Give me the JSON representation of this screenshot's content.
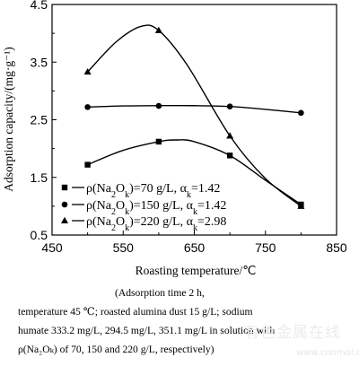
{
  "chart_data": {
    "type": "line",
    "xlabel": "Roasting temperature/℃",
    "ylabel": "Adsorption capacity/(mg·g⁻¹)",
    "xlim": [
      450,
      850
    ],
    "ylim": [
      0.5,
      4.5
    ],
    "xticks": [
      "450",
      "550",
      "650",
      "750",
      "850"
    ],
    "yticks": [
      "0.5",
      "1.5",
      "2.5",
      "3.5",
      "4.5"
    ],
    "grid": false,
    "legend_position": "bottom-left",
    "series": [
      {
        "name": "ρ(Na₂Oₖ)=70 g/L, αₖ=1.42",
        "marker": "square",
        "x": [
          500,
          600,
          700,
          800
        ],
        "y": [
          1.72,
          2.12,
          1.88,
          1.03
        ],
        "curve": [
          [
            500,
            1.72
          ],
          [
            550,
            1.97
          ],
          [
            600,
            2.12
          ],
          [
            625,
            2.15
          ],
          [
            650,
            2.12
          ],
          [
            700,
            1.88
          ],
          [
            750,
            1.45
          ],
          [
            800,
            1.03
          ]
        ]
      },
      {
        "name": "ρ(Na₂Oₖ)=150 g/L, αₖ=1.42",
        "marker": "circle",
        "x": [
          500,
          600,
          700,
          800
        ],
        "y": [
          2.72,
          2.74,
          2.73,
          2.62
        ],
        "curve": [
          [
            500,
            2.72
          ],
          [
            550,
            2.74
          ],
          [
            600,
            2.745
          ],
          [
            650,
            2.745
          ],
          [
            700,
            2.73
          ],
          [
            750,
            2.68
          ],
          [
            800,
            2.62
          ]
        ]
      },
      {
        "name": "ρ(Na₂Oₖ)=220 g/L, αₖ=2.98",
        "marker": "triangle",
        "x": [
          500,
          600,
          700,
          800
        ],
        "y": [
          3.33,
          4.05,
          2.22,
          1.0
        ],
        "curve": [
          [
            500,
            3.33
          ],
          [
            540,
            3.85
          ],
          [
            575,
            4.12
          ],
          [
            600,
            4.05
          ],
          [
            640,
            3.45
          ],
          [
            700,
            2.22
          ],
          [
            750,
            1.48
          ],
          [
            800,
            1.0
          ]
        ]
      }
    ]
  },
  "caption": {
    "line1": "(Adsorption  time  2  h,",
    "line2": "temperature 45 ℃; roasted alumina dust 15 g/L; sodium",
    "line3": "humate 333.2 mg/L, 294.5 mg/L, 351.1 mg/L in solution with",
    "line4": "ρ(Na₂Oₖ) of 70, 150 and 220 g/L, respectively)"
  },
  "watermark": {
    "text": "有色金属在线",
    "url": "www.cnnmol.com"
  }
}
